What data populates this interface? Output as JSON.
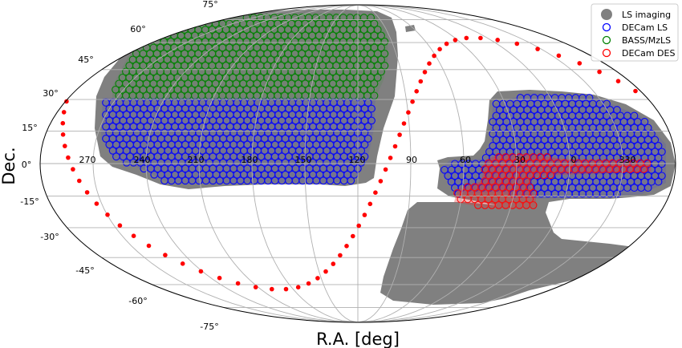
{
  "chart_data": {
    "type": "scatter",
    "projection": "Mollweide sky map",
    "xlabel": "R.A. [deg]",
    "ylabel": "Dec.",
    "ra_tick_labels": [
      "270",
      "240",
      "210",
      "180",
      "150",
      "120",
      "90",
      "60",
      "30",
      "0",
      "330"
    ],
    "dec_tick_labels": [
      "75°",
      "60°",
      "45°",
      "30°",
      "15°",
      "0°",
      "-15°",
      "-30°",
      "-45°",
      "-60°",
      "-75°"
    ],
    "dec_tick_values": [
      75,
      60,
      45,
      30,
      15,
      0,
      -15,
      -30,
      -45,
      -60,
      -75
    ],
    "grid": true,
    "legend_position": "top-right",
    "legend": [
      {
        "label": "LS imaging",
        "color": "#808080",
        "marker": "filled-circle"
      },
      {
        "label": "DECam LS",
        "color": "#0000ff",
        "marker": "open-circle"
      },
      {
        "label": "BASS/MzLS",
        "color": "#008000",
        "marker": "open-circle"
      },
      {
        "label": "DECam DES",
        "color": "#ff0000",
        "marker": "open-circle"
      }
    ],
    "galactic_plane_color": "#ff0000"
  }
}
